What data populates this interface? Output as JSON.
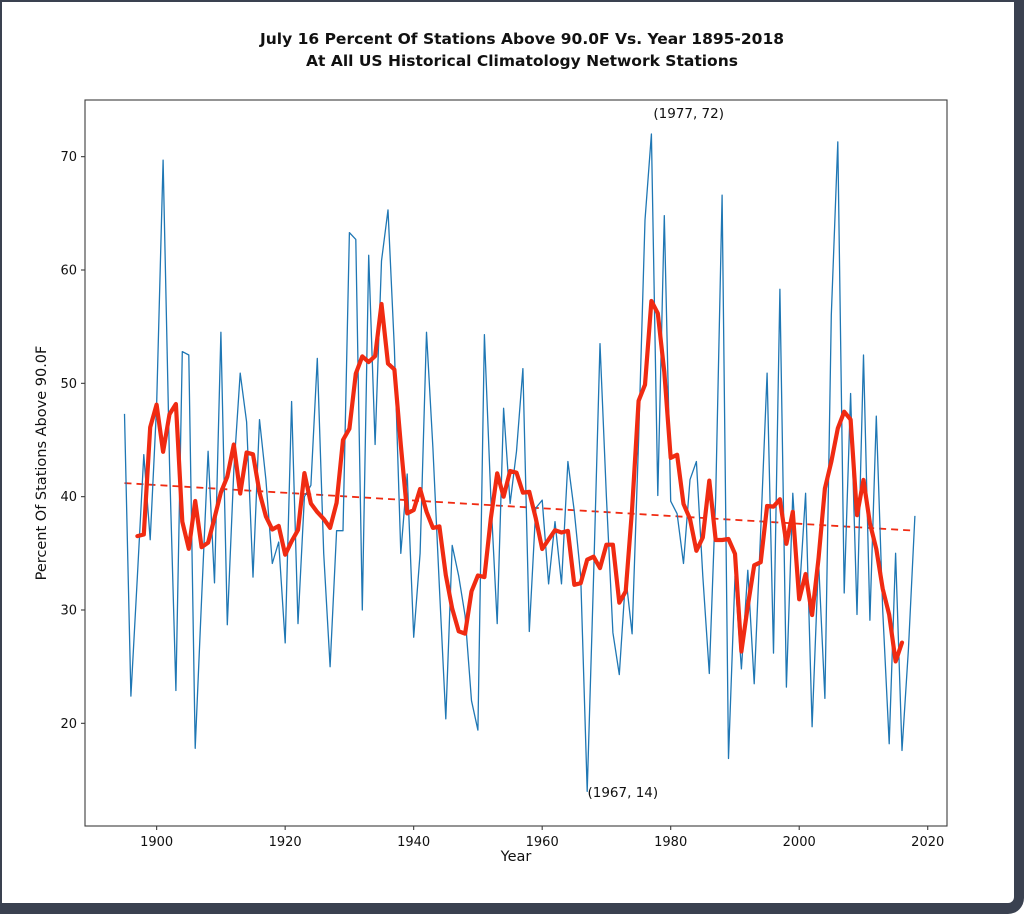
{
  "title": {
    "line1": "July 16 Percent Of Stations Above 90.0F Vs. Year 1895-2018",
    "line2": "At All US Historical Climatology Network Stations"
  },
  "axes": {
    "x_label": "Year",
    "y_label": "Percent Of Stations Above 90.0F",
    "x_ticks": [
      1900,
      1920,
      1940,
      1960,
      1980,
      2000,
      2020
    ],
    "y_ticks": [
      20,
      30,
      40,
      50,
      60,
      70
    ]
  },
  "annotations": [
    {
      "text": "(1977, 72)",
      "year": 1977.3,
      "value": 73.4
    },
    {
      "text": "(1967, 14)",
      "year": 1967.05,
      "value": 13.5
    }
  ],
  "colors": {
    "yearly_line": "#1f77b4",
    "moving_avg": "#f02b12",
    "trend": "#f02b12",
    "spine": "#3c3c3c",
    "frame": "#3a4150"
  },
  "chart_data": {
    "type": "line",
    "title": "July 16 Percent Of Stations Above 90.0F Vs. Year 1895-2018 At All US Historical Climatology Network Stations",
    "xlabel": "Year",
    "ylabel": "Percent Of Stations Above 90.0F",
    "xlim": [
      1888.85,
      2023.0
    ],
    "ylim": [
      10.94,
      75.0
    ],
    "grid": false,
    "x_start": 1895,
    "x_end": 2018,
    "series": [
      {
        "name": "yearly-percent-above-90F",
        "style": "thin-solid-blue",
        "values": [
          47.3,
          22.4,
          33,
          43.7,
          36.2,
          48,
          69.7,
          43,
          22.9,
          52.8,
          52.5,
          17.8,
          31,
          44,
          32.4,
          54.5,
          28.7,
          42.3,
          50.9,
          46.6,
          32.9,
          46.8,
          41.5,
          34.1,
          36,
          27.1,
          48.4,
          28.8,
          40,
          41,
          52.2,
          35,
          25,
          37,
          37,
          63.3,
          62.7,
          30,
          61.3,
          44.6,
          60.8,
          65.3,
          53,
          35,
          42,
          27.6,
          35,
          54.5,
          44.3,
          32,
          20.4,
          35.7,
          33,
          29.5,
          22,
          19.4,
          54.3,
          40,
          28.8,
          47.8,
          39.4,
          44,
          51.3,
          28.1,
          39,
          39.7,
          32.3,
          37.8,
          32.3,
          43.1,
          38.7,
          33,
          14,
          33,
          53.5,
          40,
          28,
          24.3,
          33,
          27.9,
          45,
          64.4,
          72,
          40.1,
          64.8,
          39.6,
          38.5,
          34.1,
          41.5,
          43.1,
          33,
          24.4,
          40,
          66.6,
          16.9,
          33,
          24.8,
          33.5,
          23.5,
          37,
          50.9,
          26.2,
          58.3,
          23.2,
          40.3,
          31.2,
          40.3,
          19.7,
          34.4,
          22.2,
          56,
          71.3,
          31.5,
          49.1,
          29.6,
          52.5,
          29.1,
          47.1,
          30,
          18.2,
          35,
          17.6,
          26.5,
          38.3
        ]
      },
      {
        "name": "5-year-centered-moving-average",
        "style": "thick-solid-red",
        "derived": "centered 5-year moving average of yearly series",
        "window": 5
      },
      {
        "name": "linear-trend",
        "style": "dashed-red",
        "points": [
          [
            1895,
            41.2
          ],
          [
            2018,
            37.0
          ]
        ]
      }
    ]
  }
}
